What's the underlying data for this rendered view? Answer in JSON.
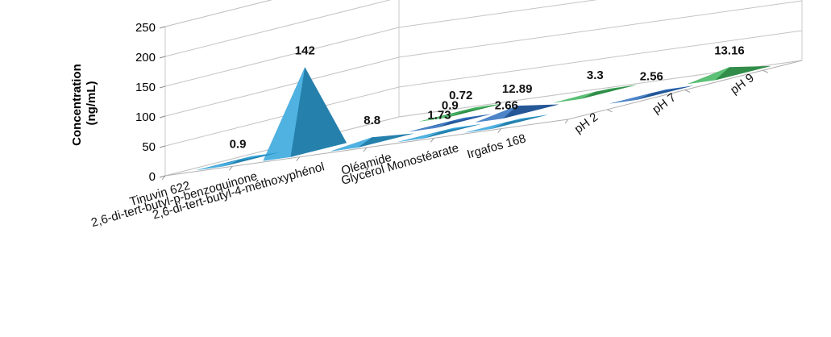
{
  "chart_data": {
    "type": "bar",
    "style": "3d-pyramid",
    "ylabel_lines": [
      "Concentration",
      "(ng/mL)"
    ],
    "ylim": [
      0,
      250
    ],
    "yticks": [
      0,
      50,
      100,
      150,
      200,
      250
    ],
    "ytick_labels": [
      "0",
      "50",
      "100",
      "150",
      "200",
      "250"
    ],
    "grid": true,
    "categories": [
      "Tinuvin 622",
      "2,6-di-tert-butyl-p-benzoquinone",
      "2,6-di-tert-butyl-4-méthoxyphénol",
      "Oléamide",
      "Glycérol Monostéarate",
      "Irgafos 168"
    ],
    "series": [
      {
        "name": "pH 2",
        "color": "#31a4dc",
        "values": [
          0.9,
          142,
          8.8,
          1.73,
          2.66,
          null
        ]
      },
      {
        "name": "pH 7",
        "color": "#2f6fc0",
        "values": [
          null,
          null,
          0.9,
          12.89,
          null,
          2.56
        ]
      },
      {
        "name": "pH 9",
        "color": "#3fb55e",
        "values": [
          null,
          0.72,
          null,
          3.3,
          null,
          13.16
        ]
      }
    ],
    "data_labels": [
      {
        "series": 0,
        "category": 0,
        "text": "0.9"
      },
      {
        "series": 0,
        "category": 1,
        "text": "142"
      },
      {
        "series": 2,
        "category": 1,
        "text": "0.72"
      },
      {
        "series": 1,
        "category": 2,
        "text": "0.9"
      },
      {
        "series": 2,
        "category": 3,
        "text": "3.3"
      },
      {
        "series": 1,
        "category": 3,
        "text": "12.89"
      },
      {
        "series": 0,
        "category": 2,
        "text": "8.8"
      },
      {
        "series": 0,
        "category": 3,
        "text": "1.73"
      },
      {
        "series": 0,
        "category": 4,
        "text": "2.66"
      },
      {
        "series": 1,
        "category": 5,
        "text": "2.56"
      },
      {
        "series": 2,
        "category": 5,
        "text": "13.16"
      }
    ]
  }
}
